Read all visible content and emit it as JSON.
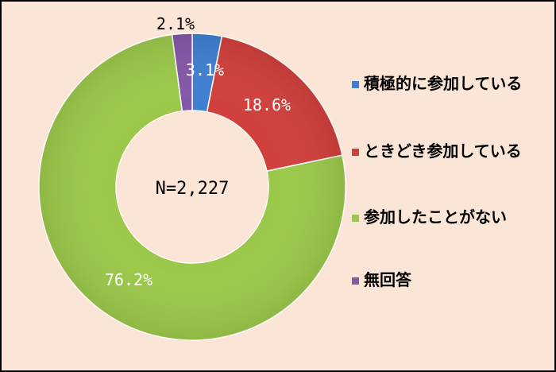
{
  "chart_data": {
    "type": "pie",
    "variant": "donut",
    "center_label": "N=2,227",
    "slices": [
      {
        "label": "積極的に参加している",
        "value": 3.1,
        "display": "3.1%",
        "color": "#3f7fd0",
        "label_color": "#ffffff"
      },
      {
        "label": "ときどき参加している",
        "value": 18.6,
        "display": "18.6%",
        "color": "#d0403c",
        "label_color": "#ffffff"
      },
      {
        "label": "参加したことがない",
        "value": 76.2,
        "display": "76.2%",
        "color": "#9bc84a",
        "label_color": "#ffffff"
      },
      {
        "label": "無回答",
        "value": 2.1,
        "display": "2.1%",
        "color": "#8358a8",
        "label_color": "#000000"
      }
    ],
    "legend_position": "right",
    "background": "#fbe5d6"
  }
}
